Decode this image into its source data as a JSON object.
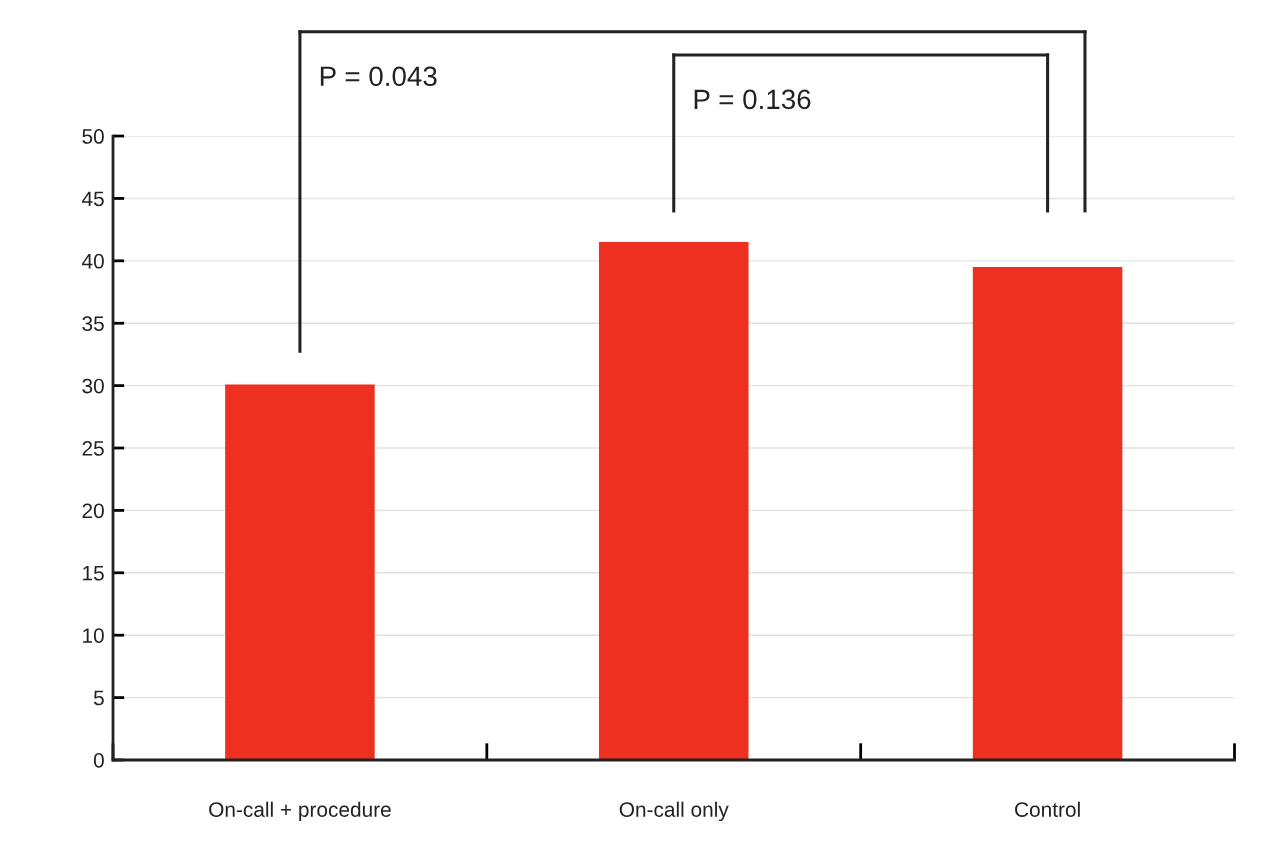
{
  "chart_data": {
    "type": "bar",
    "categories": [
      "On-call + procedure",
      "On-call only",
      "Control"
    ],
    "values": [
      30.1,
      41.5,
      39.5
    ],
    "color": "#ee3020",
    "ylim": [
      0,
      50
    ],
    "yticks": [
      0,
      5,
      10,
      15,
      20,
      25,
      30,
      35,
      40,
      45,
      50
    ],
    "grid": "y",
    "annotations": [
      "P = 0.043",
      "P = 0.136"
    ]
  }
}
